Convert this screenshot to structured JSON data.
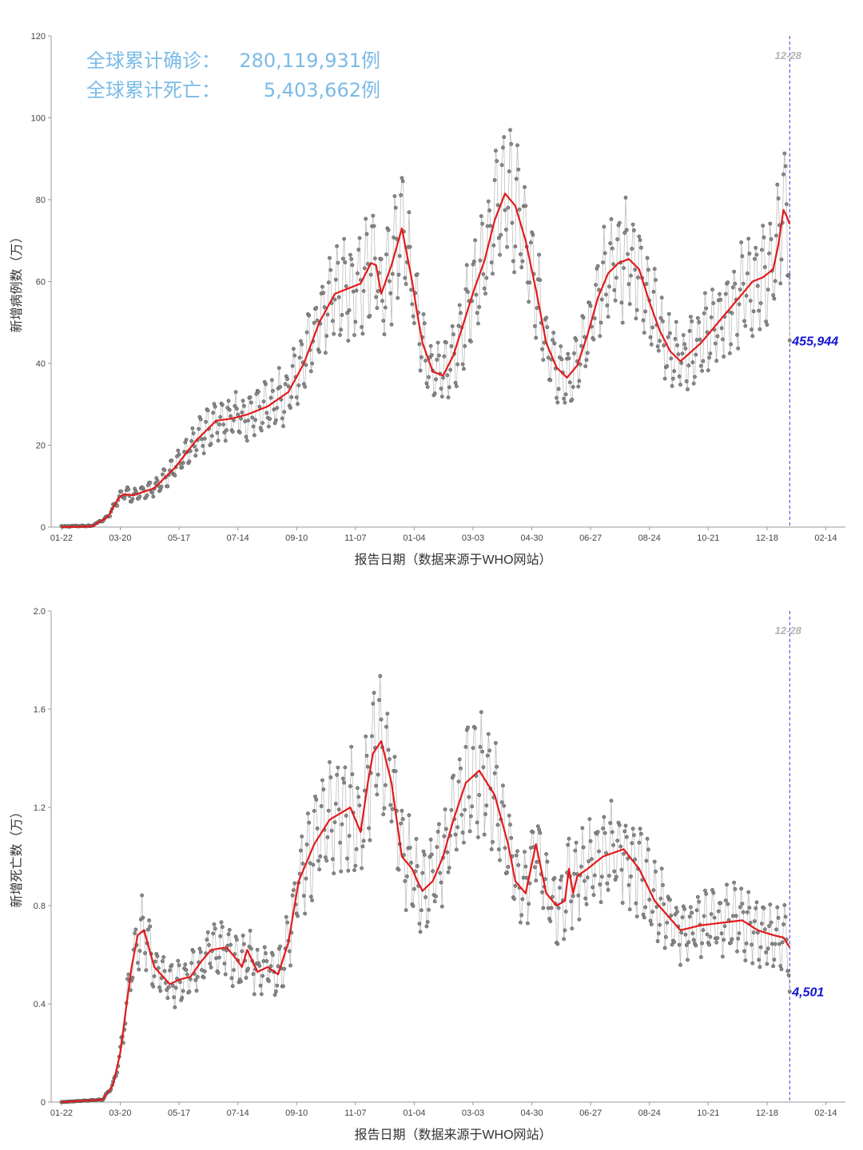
{
  "headline": {
    "cases_label": "全球累计确诊：",
    "cases_value": "280,119,931",
    "deaths_label": "全球累计死亡：",
    "deaths_value": "5,403,662",
    "unit": "例"
  },
  "colors": {
    "headline": "#7bbbe6",
    "raw_points": "#555555",
    "raw_line": "#bdbdbd",
    "moving_average": "#e31a1c",
    "marker_line": "#3b3bcc",
    "latest_value": "#1414d2",
    "marker_date": "#b3b3b3"
  },
  "chart_data": [
    {
      "type": "line",
      "ylabel": "新增病例数（万）",
      "xlabel": "报告日期（数据来源于WHO网站）",
      "ylim": [
        0,
        120
      ],
      "yticks": [
        "0",
        "20",
        "40",
        "60",
        "80",
        "100",
        "120"
      ],
      "ytick_values": [
        0,
        20,
        40,
        60,
        80,
        100,
        120
      ],
      "xticks": [
        "01-22",
        "03-20",
        "05-17",
        "07-14",
        "09-10",
        "11-07",
        "01-04",
        "03-03",
        "04-30",
        "06-27",
        "08-24",
        "10-21",
        "12-18",
        "02-14"
      ],
      "x_range_days": [
        -10,
        760
      ],
      "marker_date": "12-28",
      "marker_day": 706,
      "latest_value_label": "455,944",
      "latest_value": 45.5944,
      "series": [
        {
          "name": "",
          "kind": "moving_average",
          "x": [
            0,
            30,
            45,
            55,
            60,
            70,
            90,
            110,
            130,
            150,
            165,
            180,
            200,
            220,
            235,
            250,
            265,
            280,
            290,
            300,
            305,
            310,
            320,
            330,
            340,
            345,
            350,
            360,
            370,
            380,
            390,
            400,
            410,
            420,
            430,
            440,
            450,
            460,
            470,
            480,
            490,
            500,
            510,
            520,
            530,
            540,
            550,
            560,
            570,
            580,
            590,
            600,
            620,
            640,
            660,
            670,
            680,
            690,
            695,
            700,
            703,
            706
          ],
          "y": [
            0,
            0.2,
            2.5,
            7.0,
            8.0,
            7.8,
            9.5,
            14.5,
            21.0,
            26.0,
            26.5,
            27.5,
            29.5,
            33.0,
            40.0,
            50.0,
            57.0,
            58.5,
            59.5,
            64.5,
            64.0,
            57.0,
            64.0,
            73.0,
            60.0,
            52.0,
            45.0,
            38.0,
            37.0,
            42.0,
            50.0,
            58.0,
            65.0,
            75.0,
            81.5,
            78.5,
            70.0,
            58.0,
            45.0,
            39.0,
            36.5,
            39.5,
            47.0,
            56.0,
            62.0,
            64.5,
            65.5,
            63.0,
            55.0,
            48.0,
            43.0,
            40.5,
            45.0,
            51.0,
            57.0,
            60.0,
            61.0,
            63.0,
            69.0,
            77.5,
            76.0,
            74.0
          ]
        }
      ]
    },
    {
      "type": "line",
      "ylabel": "新增死亡数（万）",
      "xlabel": "报告日期（数据来源于WHO网站）",
      "ylim": [
        0,
        2.0
      ],
      "yticks": [
        "0",
        "0.4",
        "0.8",
        "1.2",
        "1.6",
        "2.0"
      ],
      "ytick_values": [
        0,
        0.4,
        0.8,
        1.2,
        1.6,
        2.0
      ],
      "xticks": [
        "01-22",
        "03-20",
        "05-17",
        "07-14",
        "09-10",
        "11-07",
        "01-04",
        "03-03",
        "04-30",
        "06-27",
        "08-24",
        "10-21",
        "12-18",
        "02-14"
      ],
      "x_range_days": [
        -10,
        760
      ],
      "marker_date": "12-28",
      "marker_day": 706,
      "latest_value_label": "4,501",
      "latest_value": 0.4501,
      "series": [
        {
          "name": "",
          "kind": "moving_average",
          "x": [
            0,
            40,
            50,
            57,
            62,
            68,
            74,
            80,
            90,
            105,
            115,
            125,
            135,
            145,
            160,
            170,
            175,
            180,
            190,
            200,
            210,
            220,
            230,
            245,
            260,
            280,
            290,
            297,
            302,
            310,
            320,
            330,
            340,
            345,
            350,
            360,
            370,
            380,
            392,
            405,
            420,
            433,
            440,
            450,
            460,
            470,
            480,
            488,
            492,
            496,
            500,
            510,
            525,
            545,
            560,
            575,
            600,
            620,
            640,
            660,
            675,
            690,
            700,
            706
          ],
          "y": [
            0,
            0.01,
            0.07,
            0.2,
            0.36,
            0.55,
            0.68,
            0.7,
            0.55,
            0.48,
            0.5,
            0.51,
            0.57,
            0.62,
            0.63,
            0.58,
            0.55,
            0.62,
            0.53,
            0.55,
            0.52,
            0.65,
            0.9,
            1.05,
            1.15,
            1.2,
            1.1,
            1.3,
            1.42,
            1.47,
            1.3,
            1.0,
            0.95,
            0.9,
            0.86,
            0.9,
            1.0,
            1.15,
            1.3,
            1.35,
            1.25,
            1.05,
            0.9,
            0.85,
            1.05,
            0.85,
            0.8,
            0.82,
            0.95,
            0.85,
            0.92,
            0.95,
            1.0,
            1.03,
            0.95,
            0.82,
            0.7,
            0.72,
            0.73,
            0.74,
            0.7,
            0.68,
            0.67,
            0.63
          ]
        }
      ]
    }
  ]
}
